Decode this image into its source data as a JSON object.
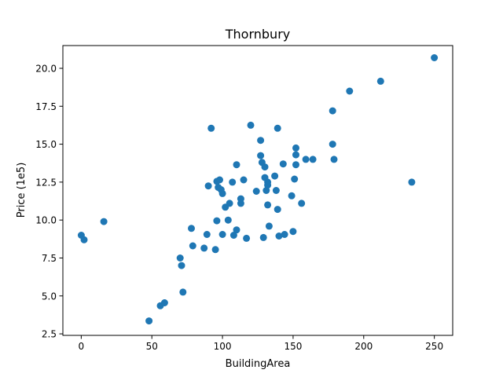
{
  "chart_data": {
    "type": "scatter",
    "title": "Thornbury",
    "xlabel": "BuildingArea",
    "ylabel": "Price (1e5)",
    "xlim": [
      -13,
      263
    ],
    "ylim": [
      2.4,
      21.5
    ],
    "xticks": [
      0,
      50,
      100,
      150,
      200,
      250
    ],
    "xtick_labels": [
      "0",
      "50",
      "100",
      "150",
      "200",
      "250"
    ],
    "yticks": [
      2.5,
      5.0,
      7.5,
      10.0,
      12.5,
      15.0,
      17.5,
      20.0
    ],
    "ytick_labels": [
      "2.5",
      "5.0",
      "7.5",
      "10.0",
      "12.5",
      "15.0",
      "17.5",
      "20.0"
    ],
    "grid": false,
    "marker_color": "#1f77b4",
    "points": [
      [
        0,
        9.0
      ],
      [
        2,
        8.7
      ],
      [
        16,
        9.9
      ],
      [
        48,
        3.35
      ],
      [
        56,
        4.35
      ],
      [
        59,
        4.55
      ],
      [
        70,
        7.5
      ],
      [
        71,
        7.0
      ],
      [
        72,
        5.25
      ],
      [
        78,
        9.45
      ],
      [
        79,
        8.3
      ],
      [
        87,
        8.15
      ],
      [
        89,
        9.05
      ],
      [
        90,
        12.25
      ],
      [
        92,
        16.05
      ],
      [
        95,
        8.05
      ],
      [
        96,
        9.95
      ],
      [
        96,
        12.55
      ],
      [
        97,
        12.15
      ],
      [
        98,
        12.65
      ],
      [
        99,
        12.0
      ],
      [
        100,
        11.75
      ],
      [
        100,
        9.05
      ],
      [
        102,
        10.85
      ],
      [
        104,
        10.0
      ],
      [
        105,
        11.1
      ],
      [
        107,
        12.5
      ],
      [
        108,
        9.0
      ],
      [
        110,
        9.35
      ],
      [
        110,
        13.65
      ],
      [
        113,
        11.4
      ],
      [
        113,
        11.1
      ],
      [
        115,
        12.65
      ],
      [
        117,
        8.8
      ],
      [
        120,
        16.25
      ],
      [
        124,
        11.9
      ],
      [
        127,
        15.25
      ],
      [
        127,
        14.25
      ],
      [
        128,
        13.8
      ],
      [
        129,
        8.85
      ],
      [
        130,
        13.5
      ],
      [
        130,
        12.8
      ],
      [
        131,
        11.95
      ],
      [
        132,
        12.5
      ],
      [
        132,
        11.0
      ],
      [
        132,
        12.3
      ],
      [
        133,
        9.6
      ],
      [
        137,
        12.9
      ],
      [
        138,
        11.95
      ],
      [
        139,
        16.05
      ],
      [
        139,
        10.7
      ],
      [
        140,
        8.95
      ],
      [
        143,
        13.7
      ],
      [
        144,
        9.05
      ],
      [
        149,
        11.6
      ],
      [
        150,
        9.25
      ],
      [
        151,
        12.7
      ],
      [
        152,
        14.75
      ],
      [
        152,
        14.3
      ],
      [
        152,
        13.65
      ],
      [
        156,
        11.1
      ],
      [
        159,
        14.0
      ],
      [
        164,
        14.0
      ],
      [
        178,
        17.2
      ],
      [
        178,
        15.0
      ],
      [
        179,
        14.0
      ],
      [
        190,
        18.5
      ],
      [
        212,
        19.15
      ],
      [
        234,
        12.5
      ],
      [
        250,
        20.7
      ]
    ]
  }
}
